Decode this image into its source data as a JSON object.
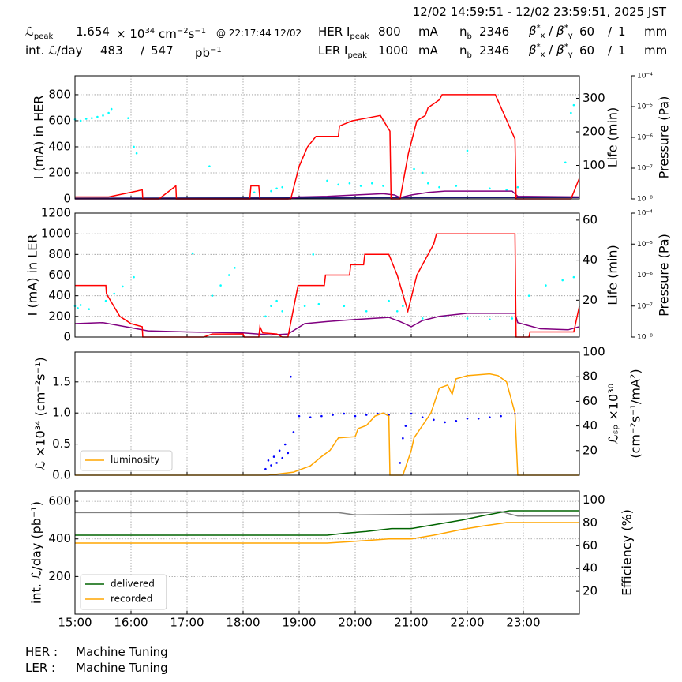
{
  "header": {
    "time_range": "12/02 14:59:51 - 12/02 23:59:51, 2025 JST",
    "lumi_peak": {
      "symbol": "ℒ",
      "sub": "peak",
      "value": 1.654,
      "unit": "× 10",
      "unit_exp": "34",
      "unit2": "cm",
      "unit2_exp": "−2",
      "unit3": "s",
      "unit3_exp": "−1",
      "time": "@ 22:17:44 12/02"
    },
    "int_lumi": {
      "label": "int. ℒ/day",
      "delivered": 483,
      "sep": "/",
      "total": 547,
      "unit": "pb",
      "unit_exp": "−1"
    },
    "rings": [
      {
        "label": "HER I",
        "sub": "peak",
        "current": 800,
        "unit": "mA",
        "nb_label": "n",
        "nb_sub": "b",
        "nb": 2346,
        "beta": "β",
        "beta_sup": "*",
        "beta_x": "x",
        "beta_sep": "/",
        "beta_y": "y",
        "beta_x_value": 60,
        "beta_y_value": 1,
        "beta_unit": "mm"
      },
      {
        "label": "LER I",
        "sub": "peak",
        "current": 1000,
        "unit": "mA",
        "nb_label": "n",
        "nb_sub": "b",
        "nb": 2346,
        "beta": "β",
        "beta_sup": "*",
        "beta_x": "x",
        "beta_sep": "/",
        "beta_y": "y",
        "beta_x_value": 60,
        "beta_y_value": 1,
        "beta_unit": "mm"
      }
    ]
  },
  "chart_data": [
    {
      "type": "line",
      "ylabel": "I (mA) in HER",
      "y2label": "Life (min)",
      "y3label": "Pressure (Pa)",
      "xlim": [
        15,
        24
      ],
      "xticks": [
        15,
        16,
        17,
        18,
        19,
        20,
        21,
        22,
        23
      ],
      "ylim": [
        0,
        945
      ],
      "yticks": [
        0,
        200,
        400,
        600,
        800
      ],
      "y2lim": [
        0,
        367
      ],
      "y2ticks": [
        100,
        200,
        300
      ],
      "y3lim": [
        1e-08,
        0.0001
      ],
      "y3scale": "log",
      "y3ticks": [
        {
          "value": 1e-08,
          "label": "10⁻⁸"
        },
        {
          "value": 1e-07,
          "label": "10⁻⁷"
        },
        {
          "value": 1e-06,
          "label": "10⁻⁶"
        },
        {
          "value": 1e-05,
          "label": "10⁻⁵"
        },
        {
          "value": 0.0001,
          "label": "10⁻⁴"
        }
      ],
      "grid": true,
      "series": [
        {
          "color": "#00ffff",
          "style": "points",
          "x": [
            15,
            15.1,
            15.2,
            15.3,
            15.4,
            15.5,
            15.6,
            15.65,
            15.95,
            16.05,
            16.1,
            17.4,
            18.2,
            18.5,
            18.6,
            18.7,
            19.5,
            19.7,
            19.9,
            20.1,
            20.3,
            20.5,
            21.05,
            21.2,
            21.3,
            21.5,
            21.8,
            22.0,
            22.4,
            22.7,
            22.9,
            23.75,
            23.85,
            23.9
          ],
          "values": [
            610,
            600,
            615,
            620,
            630,
            640,
            660,
            690,
            620,
            400,
            350,
            250,
            50,
            60,
            80,
            90,
            140,
            110,
            120,
            100,
            120,
            100,
            230,
            200,
            120,
            90,
            100,
            370,
            80,
            70,
            90,
            280,
            660,
            720
          ]
        },
        {
          "color": "#191970",
          "style": "line",
          "x": [
            15,
            19,
            24
          ],
          "values": [
            5,
            8,
            10
          ]
        },
        {
          "color": "#800080",
          "style": "line",
          "x": [
            15,
            18.8,
            19.0,
            19.5,
            20.0,
            20.5,
            20.7,
            20.8,
            21.0,
            21.3,
            21.6,
            22.8,
            22.9,
            24
          ],
          "values": [
            0,
            0,
            15,
            20,
            30,
            40,
            30,
            10,
            30,
            50,
            60,
            60,
            20,
            15
          ]
        },
        {
          "color": "#ff0000",
          "style": "line",
          "x": [
            15,
            15.6,
            16.1,
            16.2,
            16.21,
            16.5,
            16.8,
            16.81,
            18.12,
            18.14,
            18.28,
            18.3,
            18.85,
            19.0,
            19.15,
            19.3,
            19.7,
            19.72,
            19.95,
            20.2,
            20.45,
            20.62,
            20.64,
            20.8,
            20.95,
            21.1,
            21.25,
            21.3,
            21.5,
            21.55,
            22.5,
            22.85,
            22.87,
            23.85,
            24
          ],
          "values": [
            15,
            15,
            60,
            70,
            0,
            0,
            100,
            0,
            0,
            100,
            100,
            0,
            0,
            250,
            400,
            480,
            480,
            560,
            600,
            620,
            640,
            520,
            0,
            0,
            350,
            600,
            640,
            700,
            760,
            800,
            800,
            460,
            0,
            0,
            160
          ]
        }
      ]
    },
    {
      "type": "line",
      "ylabel": "I (mA) in LER",
      "y2label": "Life (min)",
      "y3label": "Pressure (Pa)",
      "xlim": [
        15,
        24
      ],
      "xticks": [
        15,
        16,
        17,
        18,
        19,
        20,
        21,
        22,
        23
      ],
      "ylim": [
        0,
        1200
      ],
      "yticks": [
        0,
        200,
        400,
        600,
        800,
        1000,
        1200
      ],
      "y2lim": [
        1.6,
        63.5
      ],
      "y2ticks": [
        20,
        40,
        60
      ],
      "y3lim": [
        1e-08,
        0.0001
      ],
      "y3scale": "log",
      "y3ticks": [
        {
          "value": 1e-08,
          "label": "10⁻⁸"
        },
        {
          "value": 1e-07,
          "label": "10⁻⁷"
        },
        {
          "value": 1e-06,
          "label": "10⁻⁶"
        },
        {
          "value": 1e-05,
          "label": "10⁻⁵"
        },
        {
          "value": 0.0001,
          "label": "10⁻⁴"
        }
      ],
      "grid": true,
      "series": [
        {
          "color": "#00ffff",
          "style": "points",
          "x": [
            15,
            15.05,
            15.1,
            15.25,
            15.55,
            15.7,
            15.85,
            16.05,
            17.1,
            17.45,
            17.6,
            17.75,
            17.85,
            18.4,
            18.5,
            18.6,
            18.7,
            19.1,
            19.25,
            19.35,
            19.8,
            20.2,
            20.6,
            20.75,
            20.85,
            21.2,
            21.6,
            22.0,
            22.4,
            22.8,
            23.1,
            23.4,
            23.7,
            23.9
          ],
          "values": [
            300,
            280,
            310,
            270,
            350,
            420,
            490,
            580,
            810,
            400,
            500,
            600,
            670,
            200,
            300,
            350,
            250,
            300,
            800,
            320,
            300,
            250,
            350,
            250,
            300,
            180,
            200,
            180,
            170,
            180,
            400,
            500,
            550,
            580
          ]
        },
        {
          "color": "#800080",
          "style": "line",
          "x": [
            15,
            15.5,
            15.9,
            16.3,
            17.0,
            18.0,
            18.5,
            18.8,
            19.1,
            19.5,
            20.0,
            20.6,
            20.8,
            21.0,
            21.2,
            21.5,
            22.0,
            22.85,
            22.9,
            23.3,
            23.8,
            24
          ],
          "values": [
            130,
            140,
            100,
            60,
            50,
            40,
            20,
            30,
            130,
            150,
            170,
            190,
            150,
            100,
            160,
            200,
            230,
            230,
            140,
            80,
            70,
            100
          ]
        },
        {
          "color": "#ff0000",
          "style": "line",
          "x": [
            15,
            15.55,
            15.56,
            15.8,
            16.0,
            16.2,
            16.21,
            17.3,
            17.45,
            18.0,
            18.02,
            18.28,
            18.3,
            18.35,
            18.6,
            18.7,
            18.8,
            18.98,
            19.45,
            19.47,
            19.9,
            19.92,
            20.15,
            20.17,
            20.6,
            20.75,
            20.94,
            21.1,
            21.2,
            21.3,
            21.4,
            21.45,
            22.85,
            22.87,
            23.1,
            23.12,
            23.9,
            24
          ],
          "values": [
            500,
            500,
            420,
            200,
            130,
            100,
            0,
            0,
            30,
            30,
            0,
            0,
            100,
            40,
            30,
            0,
            0,
            500,
            500,
            600,
            600,
            700,
            700,
            800,
            800,
            600,
            250,
            600,
            700,
            800,
            900,
            1000,
            1000,
            0,
            0,
            50,
            50,
            300
          ]
        }
      ]
    },
    {
      "type": "line",
      "ylabel": "ℒ ×10³⁴ (cm⁻²s⁻¹)",
      "y2label": [
        "ℒₛₚ ×10³⁰",
        "(cm⁻²s⁻¹/mA²)"
      ],
      "xlim": [
        15,
        24
      ],
      "xticks": [
        15,
        16,
        17,
        18,
        19,
        20,
        21,
        22,
        23
      ],
      "ylim": [
        0,
        1.98
      ],
      "yticks": [
        {
          "value": 0,
          "label": "0.0"
        },
        {
          "value": 0.5,
          "label": "0.5"
        },
        {
          "value": 1,
          "label": "1.0"
        },
        {
          "value": 1.5,
          "label": "1.5"
        }
      ],
      "y2lim": [
        0,
        100
      ],
      "y2ticks": [
        20,
        40,
        60,
        80,
        100
      ],
      "grid": true,
      "legend": "lower left",
      "series": [
        {
          "color": "#0000ff",
          "style": "points",
          "axis": "y2",
          "x": [
            18.4,
            18.45,
            18.5,
            18.55,
            18.6,
            18.65,
            18.7,
            18.75,
            18.8,
            18.85,
            18.9,
            19.0,
            19.2,
            19.4,
            19.6,
            19.8,
            20.0,
            20.2,
            20.4,
            20.6,
            20.8,
            20.85,
            20.9,
            21.0,
            21.2,
            21.4,
            21.6,
            21.8,
            22.0,
            22.2,
            22.4,
            22.6,
            22.85
          ],
          "values": [
            5,
            12,
            8,
            15,
            10,
            20,
            14,
            25,
            18,
            80,
            35,
            48,
            47,
            48,
            49,
            50,
            48,
            49,
            50,
            49,
            10,
            30,
            40,
            50,
            47,
            45,
            43,
            44,
            46,
            46,
            47,
            48,
            50
          ]
        },
        {
          "name": "luminosity",
          "color": "#ffa500",
          "style": "line",
          "x": [
            15,
            18.45,
            18.9,
            19.2,
            19.4,
            19.55,
            19.7,
            20.0,
            20.05,
            20.2,
            20.35,
            20.5,
            20.6,
            20.62,
            20.85,
            21.0,
            21.05,
            21.2,
            21.35,
            21.5,
            21.65,
            21.73,
            21.8,
            22.0,
            22.4,
            22.55,
            22.7,
            22.85,
            22.9,
            24
          ],
          "values": [
            0,
            0,
            0.05,
            0.15,
            0.3,
            0.4,
            0.6,
            0.62,
            0.75,
            0.8,
            0.95,
            1.0,
            0.95,
            0,
            0,
            0.4,
            0.6,
            0.8,
            1.0,
            1.4,
            1.45,
            1.3,
            1.55,
            1.6,
            1.63,
            1.6,
            1.5,
            1.0,
            0,
            0
          ]
        }
      ]
    },
    {
      "type": "line",
      "ylabel": "int. ℒ/day (pb⁻¹)",
      "y2label": "Efficiency (%)",
      "xlim": [
        15,
        24
      ],
      "xticks": [
        {
          "value": 15,
          "label": "15:00"
        },
        {
          "value": 16,
          "label": "16:00"
        },
        {
          "value": 17,
          "label": "17:00"
        },
        {
          "value": 18,
          "label": "18:00"
        },
        {
          "value": 19,
          "label": "19:00"
        },
        {
          "value": 20,
          "label": "20:00"
        },
        {
          "value": 21,
          "label": "21:00"
        },
        {
          "value": 22,
          "label": "22:00"
        },
        {
          "value": 23,
          "label": "23:00"
        }
      ],
      "ylim": [
        0,
        655
      ],
      "yticks": [
        200,
        400,
        600
      ],
      "y2lim": [
        0,
        108
      ],
      "y2ticks": [
        20,
        40,
        60,
        80,
        100
      ],
      "grid": true,
      "legend": "lower left",
      "series": [
        {
          "color": "#808080",
          "style": "line",
          "axis": "y2",
          "x": [
            15,
            19.7,
            20.0,
            21.0,
            22.0,
            22.6,
            22.9,
            24
          ],
          "values": [
            89,
            89,
            87,
            87.5,
            88,
            90,
            86,
            86
          ]
        },
        {
          "name": "delivered",
          "color": "#006400",
          "style": "line",
          "x": [
            15,
            19.5,
            19.8,
            20.2,
            20.65,
            21.0,
            21.4,
            21.9,
            22.3,
            22.75,
            24
          ],
          "values": [
            420,
            420,
            430,
            440,
            455,
            455,
            475,
            500,
            525,
            550,
            550
          ]
        },
        {
          "name": "recorded",
          "color": "#ffa500",
          "style": "line",
          "x": [
            15,
            19.5,
            19.9,
            20.6,
            21.0,
            21.4,
            21.9,
            22.3,
            22.7,
            24
          ],
          "values": [
            378,
            378,
            385,
            400,
            400,
            420,
            450,
            470,
            487,
            487
          ]
        }
      ]
    }
  ],
  "footer": {
    "rows": [
      {
        "ring": "HER :",
        "status": "Machine Tuning"
      },
      {
        "ring": "LER :",
        "status": "Machine Tuning"
      }
    ]
  }
}
